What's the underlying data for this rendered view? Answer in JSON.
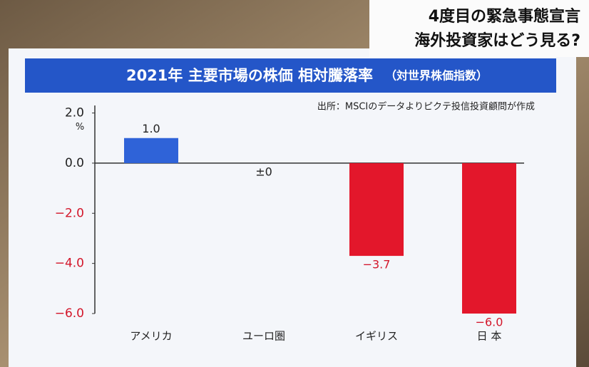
{
  "header": {
    "lines": [
      "4度目の緊急事態宣言",
      "海外投資家はどう見る?"
    ]
  },
  "chart_data": {
    "type": "bar",
    "title": "2021年 主要市場の株価 相対騰落率",
    "subtitle": "（対世界株価指数）",
    "source": "出所：MSCIのデータよりピクテ投信投資顧問が作成",
    "y_unit": "%",
    "categories": [
      "アメリカ",
      "ユーロ圏",
      "イギリス",
      "日 本"
    ],
    "values": [
      1.0,
      0,
      -3.7,
      -6.0
    ],
    "value_labels": [
      "1.0",
      "±0",
      "−3.7",
      "−6.0"
    ],
    "colors": [
      "#2f63d8",
      "#2f63d8",
      "#e3172b",
      "#e3172b"
    ],
    "ylim": [
      -6.0,
      2.3
    ],
    "yticks": [
      {
        "value": 2,
        "label": "2.0"
      },
      {
        "value": 0,
        "label": "0.0"
      },
      {
        "value": -2,
        "label": "−2.0"
      },
      {
        "value": -4,
        "label": "−4.0"
      },
      {
        "value": -6,
        "label": "−6.0"
      }
    ],
    "grid": false
  }
}
